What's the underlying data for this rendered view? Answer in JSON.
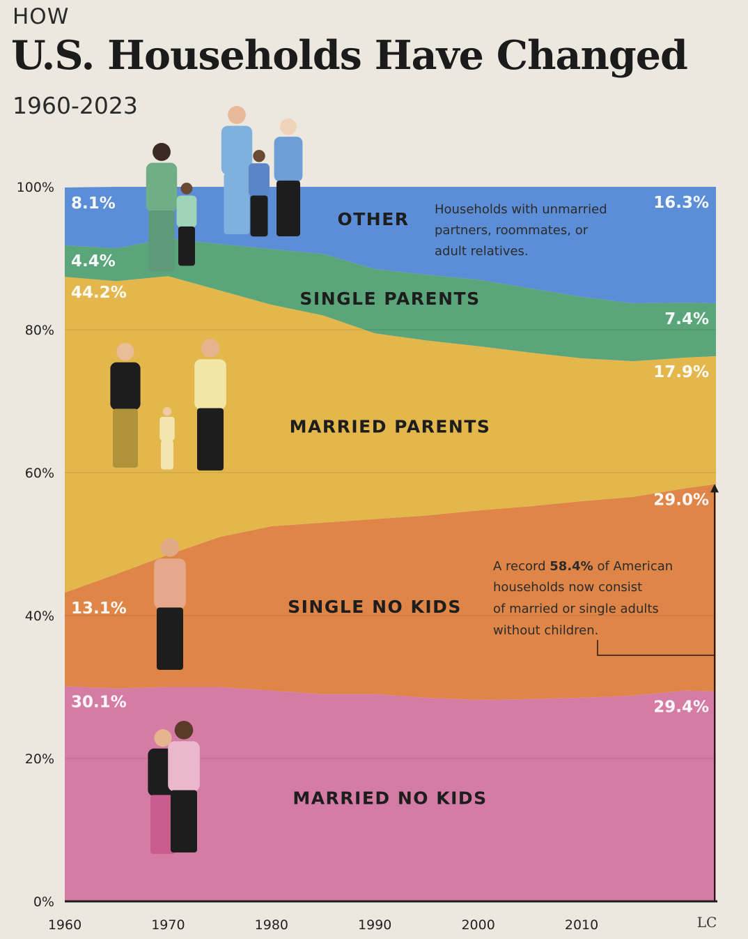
{
  "header": {
    "kicker": "HOW",
    "title": "U.S. Households Have Changed",
    "subtitle": "1960-2023"
  },
  "chart_data": {
    "type": "area",
    "stacked": true,
    "x": [
      1960,
      1965,
      1970,
      1975,
      1980,
      1985,
      1990,
      1995,
      2000,
      2005,
      2010,
      2015,
      2020,
      2023
    ],
    "xlim": [
      1960,
      2023
    ],
    "x_ticks": [
      "1960",
      "1970",
      "1980",
      "1990",
      "2000",
      "2010"
    ],
    "ylim": [
      0,
      100
    ],
    "y_ticks": [
      "0%",
      "20%",
      "40%",
      "60%",
      "80%",
      "100%"
    ],
    "grid": true,
    "series": [
      {
        "name": "MARRIED NO KIDS",
        "color": "#d47ca4",
        "values": [
          30.1,
          29.8,
          30.0,
          30.0,
          29.5,
          29.0,
          29.0,
          28.5,
          28.2,
          28.3,
          28.5,
          28.8,
          29.5,
          29.4
        ]
      },
      {
        "name": "SINGLE NO KIDS",
        "color": "#de8547",
        "values": [
          13.1,
          16.0,
          18.5,
          21.0,
          23.0,
          24.0,
          24.5,
          25.5,
          26.5,
          27.0,
          27.5,
          27.8,
          28.3,
          29.0
        ]
      },
      {
        "name": "MARRIED PARENTS",
        "color": "#e3b74b",
        "values": [
          44.2,
          41.0,
          39.0,
          34.5,
          31.0,
          29.0,
          26.0,
          24.5,
          23.0,
          21.5,
          20.0,
          19.0,
          18.3,
          17.9
        ]
      },
      {
        "name": "SINGLE PARENTS",
        "color": "#5aa57a",
        "values": [
          4.4,
          4.6,
          5.3,
          6.5,
          7.8,
          8.6,
          9.0,
          9.2,
          9.3,
          9.0,
          8.6,
          8.1,
          7.7,
          7.4
        ]
      },
      {
        "name": "OTHER",
        "color": "#5b8ed6",
        "values": [
          8.1,
          8.6,
          7.2,
          8.0,
          8.7,
          9.4,
          11.5,
          12.3,
          13.0,
          14.2,
          15.4,
          16.3,
          16.2,
          16.3
        ]
      }
    ],
    "start_labels": [
      "30.1%",
      "13.1%",
      "44.2%",
      "4.4%",
      "8.1%"
    ],
    "end_labels": [
      "29.4%",
      "29.0%",
      "17.9%",
      "7.4%",
      "16.3%"
    ],
    "annotations": {
      "other_note": [
        "Households with unmarried",
        "partners, roommates, or",
        "adult relatives."
      ],
      "record_note_prefix": "A record ",
      "record_note_value": "58.4%",
      "record_note_suffix": " of American",
      "record_note_rest": [
        "households now consist",
        "of married or single adults",
        "without children."
      ]
    }
  },
  "footer": {
    "logo": "LC"
  }
}
